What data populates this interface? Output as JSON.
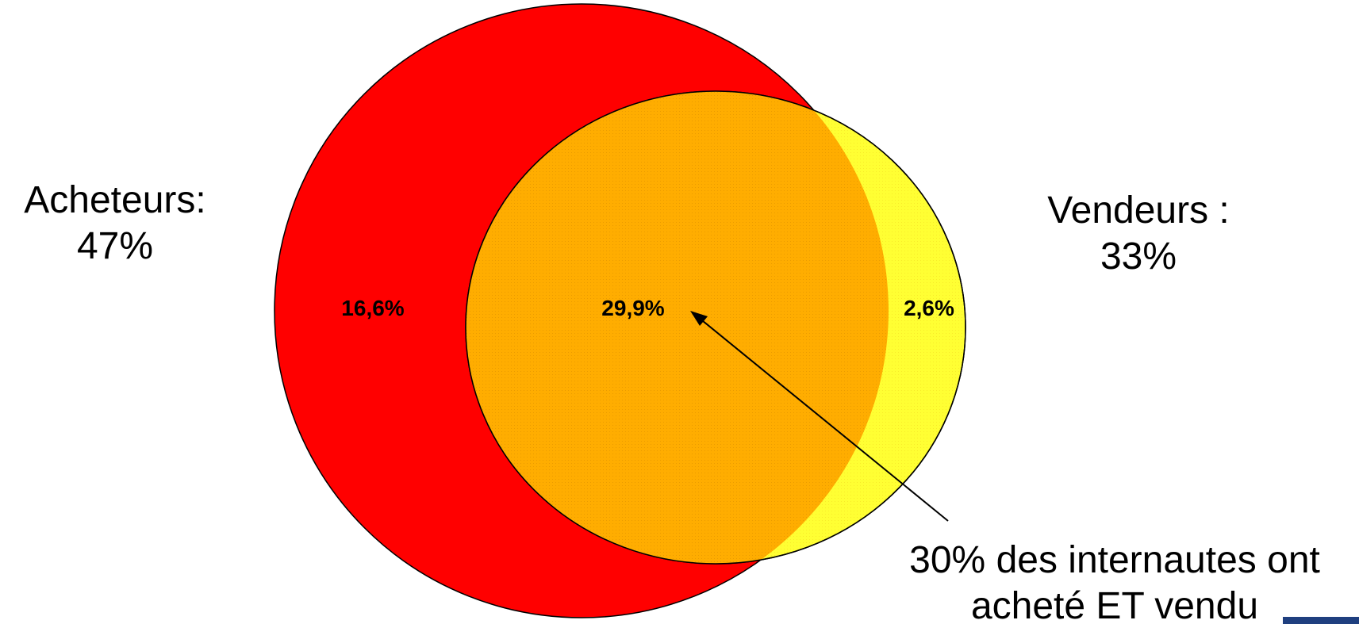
{
  "sets": {
    "buyers": {
      "label": "Acheteurs:",
      "value": "47%",
      "color": "#ff0000"
    },
    "sellers": {
      "label": "Vendeurs :",
      "value": "33%",
      "color": "#ffff33"
    }
  },
  "regions": {
    "buyers_only": "16,6%",
    "both": "29,9%",
    "sellers_only": "2,6%",
    "overlap_color": "#ffad00"
  },
  "annotation": {
    "line1": "30% des internautes ont",
    "line2": "acheté ET vendu"
  }
}
